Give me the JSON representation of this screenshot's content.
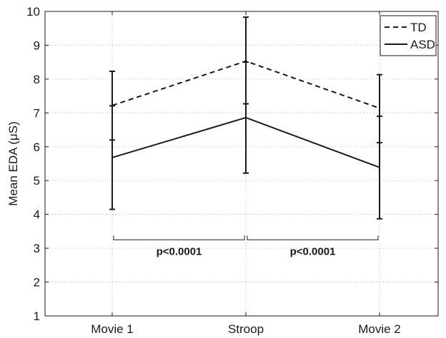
{
  "chart_data": {
    "type": "line",
    "categories": [
      "Movie 1",
      "Stroop",
      "Movie 2"
    ],
    "ylabel": "Mean EDA (μS)",
    "xlabel": "",
    "title": "",
    "ylim": [
      1,
      10
    ],
    "yticks": [
      1,
      2,
      3,
      4,
      5,
      6,
      7,
      8,
      9,
      10
    ],
    "grid": true,
    "legend_position": "top-right",
    "series": [
      {
        "name": "TD",
        "style": "dashed",
        "color": "#1a1a1a",
        "values": [
          7.22,
          8.53,
          7.14
        ],
        "lower": [
          6.2,
          7.27,
          6.12
        ],
        "upper": [
          8.23,
          9.83,
          8.13
        ]
      },
      {
        "name": "ASD",
        "style": "solid",
        "color": "#1a1a1a",
        "values": [
          5.68,
          6.86,
          5.39
        ],
        "lower": [
          4.15,
          5.22,
          3.87
        ],
        "upper": [
          7.21,
          8.5,
          6.9
        ]
      }
    ],
    "annotations": [
      {
        "text": "p<0.0001",
        "from": 0,
        "to": 1,
        "y": 3.25
      },
      {
        "text": "p<0.0001",
        "from": 1,
        "to": 2,
        "y": 3.25
      }
    ]
  }
}
